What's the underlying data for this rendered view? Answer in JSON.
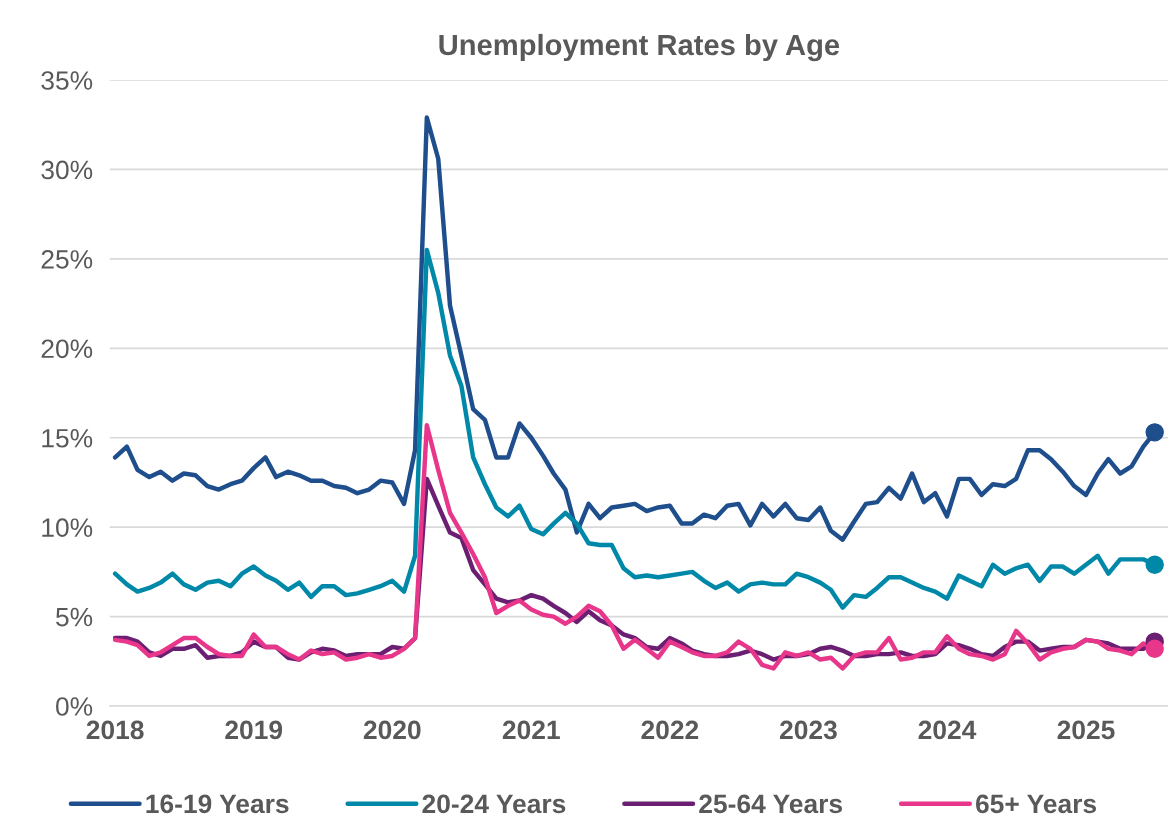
{
  "chart_data": {
    "type": "line",
    "title": "Unemployment Rates by Age",
    "x": [
      "2018-01",
      "2018-02",
      "2018-03",
      "2018-04",
      "2018-05",
      "2018-06",
      "2018-07",
      "2018-08",
      "2018-09",
      "2018-10",
      "2018-11",
      "2018-12",
      "2019-01",
      "2019-02",
      "2019-03",
      "2019-04",
      "2019-05",
      "2019-06",
      "2019-07",
      "2019-08",
      "2019-09",
      "2019-10",
      "2019-11",
      "2019-12",
      "2020-01",
      "2020-02",
      "2020-03",
      "2020-04",
      "2020-05",
      "2020-06",
      "2020-07",
      "2020-08",
      "2020-09",
      "2020-10",
      "2020-11",
      "2020-12",
      "2021-01",
      "2021-02",
      "2021-03",
      "2021-04",
      "2021-05",
      "2021-06",
      "2021-07",
      "2021-08",
      "2021-09",
      "2021-10",
      "2021-11",
      "2021-12",
      "2022-01",
      "2022-02",
      "2022-03",
      "2022-04",
      "2022-05",
      "2022-06",
      "2022-07",
      "2022-08",
      "2022-09",
      "2022-10",
      "2022-11",
      "2022-12",
      "2023-01",
      "2023-02",
      "2023-03",
      "2023-04",
      "2023-05",
      "2023-06",
      "2023-07",
      "2023-08",
      "2023-09",
      "2023-10",
      "2023-11",
      "2023-12",
      "2024-01",
      "2024-02",
      "2024-03",
      "2024-04",
      "2024-05",
      "2024-06",
      "2024-07",
      "2024-08",
      "2024-09",
      "2024-10",
      "2024-11",
      "2024-12",
      "2025-01",
      "2025-02",
      "2025-03",
      "2025-04",
      "2025-05",
      "2025-06",
      "2025-07"
    ],
    "series": [
      {
        "name": "16-19 Years",
        "color": "#1f4e8c",
        "values": [
          13.9,
          14.5,
          13.2,
          12.8,
          13.1,
          12.6,
          13.0,
          12.9,
          12.3,
          12.1,
          12.4,
          12.6,
          13.3,
          13.9,
          12.8,
          13.1,
          12.9,
          12.6,
          12.6,
          12.3,
          12.2,
          11.9,
          12.1,
          12.6,
          12.5,
          11.3,
          14.3,
          32.9,
          30.6,
          22.4,
          19.6,
          16.6,
          16.0,
          13.9,
          13.9,
          15.8,
          15.0,
          14.0,
          13.0,
          12.1,
          9.7,
          11.3,
          10.5,
          11.1,
          11.2,
          11.3,
          10.9,
          11.1,
          11.2,
          10.2,
          10.2,
          10.7,
          10.5,
          11.2,
          11.3,
          10.1,
          11.3,
          10.6,
          11.3,
          10.5,
          10.4,
          11.1,
          9.8,
          9.3,
          10.3,
          11.3,
          11.4,
          12.2,
          11.6,
          13.0,
          11.4,
          11.9,
          10.6,
          12.7,
          12.7,
          11.8,
          12.4,
          12.3,
          12.7,
          14.3,
          14.3,
          13.8,
          13.1,
          12.3,
          11.8,
          13.0,
          13.8,
          13.0,
          13.4,
          14.5,
          15.3
        ]
      },
      {
        "name": "20-24 Years",
        "color": "#0088a8",
        "values": [
          7.4,
          6.8,
          6.4,
          6.6,
          6.9,
          7.4,
          6.8,
          6.5,
          6.9,
          7.0,
          6.7,
          7.4,
          7.8,
          7.3,
          7.0,
          6.5,
          6.9,
          6.1,
          6.7,
          6.7,
          6.2,
          6.3,
          6.5,
          6.7,
          7.0,
          6.4,
          8.4,
          25.5,
          23.1,
          19.6,
          17.9,
          13.9,
          12.4,
          11.1,
          10.6,
          11.2,
          9.9,
          9.6,
          10.2,
          10.8,
          10.2,
          9.1,
          9.0,
          9.0,
          7.7,
          7.2,
          7.3,
          7.2,
          7.3,
          7.4,
          7.5,
          7.0,
          6.6,
          6.9,
          6.4,
          6.8,
          6.9,
          6.8,
          6.8,
          7.4,
          7.2,
          6.9,
          6.5,
          5.5,
          6.2,
          6.1,
          6.6,
          7.2,
          7.2,
          6.9,
          6.6,
          6.4,
          6.0,
          7.3,
          7.0,
          6.7,
          7.9,
          7.4,
          7.7,
          7.9,
          7.0,
          7.8,
          7.8,
          7.4,
          7.9,
          8.4,
          7.4,
          8.2,
          8.2,
          8.2,
          7.9
        ]
      },
      {
        "name": "25-64 Years",
        "color": "#6a1f72",
        "values": [
          3.8,
          3.8,
          3.6,
          3.0,
          2.8,
          3.2,
          3.2,
          3.4,
          2.7,
          2.8,
          2.8,
          3.0,
          3.6,
          3.3,
          3.3,
          2.7,
          2.6,
          3.0,
          3.2,
          3.1,
          2.8,
          2.9,
          2.9,
          2.9,
          3.3,
          3.2,
          3.8,
          12.7,
          11.2,
          9.7,
          9.4,
          7.6,
          6.8,
          6.0,
          5.8,
          5.9,
          6.2,
          6.0,
          5.6,
          5.2,
          4.7,
          5.3,
          4.8,
          4.5,
          4.0,
          3.8,
          3.3,
          3.2,
          3.8,
          3.5,
          3.1,
          2.9,
          2.8,
          2.8,
          2.9,
          3.1,
          2.9,
          2.6,
          2.8,
          2.8,
          2.9,
          3.2,
          3.3,
          3.1,
          2.8,
          2.8,
          2.9,
          2.9,
          3.0,
          2.8,
          2.8,
          2.9,
          3.5,
          3.4,
          3.2,
          2.9,
          2.8,
          3.3,
          3.6,
          3.6,
          3.1,
          3.2,
          3.3,
          3.3,
          3.7,
          3.6,
          3.5,
          3.2,
          3.2,
          3.2,
          3.6
        ]
      },
      {
        "name": "65+ Years",
        "color": "#e8368a",
        "values": [
          3.7,
          3.6,
          3.4,
          2.8,
          3.0,
          3.4,
          3.8,
          3.8,
          3.3,
          2.9,
          2.8,
          2.8,
          4.0,
          3.3,
          3.3,
          2.9,
          2.6,
          3.1,
          2.9,
          3.0,
          2.6,
          2.7,
          2.9,
          2.7,
          2.8,
          3.2,
          3.8,
          15.7,
          13.2,
          10.8,
          9.7,
          8.5,
          7.2,
          5.2,
          5.6,
          5.9,
          5.4,
          5.1,
          5.0,
          4.6,
          5.0,
          5.6,
          5.3,
          4.5,
          3.2,
          3.7,
          3.2,
          2.7,
          3.6,
          3.3,
          3.0,
          2.8,
          2.8,
          3.0,
          3.6,
          3.2,
          2.3,
          2.1,
          3.0,
          2.8,
          3.0,
          2.6,
          2.7,
          2.1,
          2.8,
          3.0,
          3.0,
          3.8,
          2.6,
          2.7,
          3.0,
          3.0,
          3.9,
          3.2,
          2.9,
          2.8,
          2.6,
          2.9,
          4.2,
          3.5,
          2.6,
          3.0,
          3.2,
          3.3,
          3.7,
          3.6,
          3.2,
          3.1,
          2.9,
          3.5,
          3.2
        ]
      },
      {
        "type": "scatter",
        "marker": "circle",
        "x": [
          "2025-07"
        ],
        "color": "#1f4e8c",
        "values": [
          15.3
        ]
      },
      {
        "type": "scatter",
        "marker": "circle",
        "x": [
          "2025-07"
        ],
        "color": "#0088a8",
        "values": [
          7.9
        ]
      },
      {
        "type": "scatter",
        "marker": "circle",
        "x": [
          "2025-07"
        ],
        "color": "#6a1f72",
        "values": [
          3.6
        ]
      },
      {
        "type": "scatter",
        "marker": "circle",
        "x": [
          "2025-07"
        ],
        "color": "#e8368a",
        "values": [
          3.2
        ]
      }
    ],
    "xlim": [
      "2017-12-18",
      "2025-08-05"
    ],
    "xticks": [
      {
        "value": "2018-01",
        "label": "2018"
      },
      {
        "value": "2019-01",
        "label": "2019"
      },
      {
        "value": "2020-01",
        "label": "2020"
      },
      {
        "value": "2021-01",
        "label": "2021"
      },
      {
        "value": "2022-01",
        "label": "2022"
      },
      {
        "value": "2023-01",
        "label": "2023"
      },
      {
        "value": "2024-01",
        "label": "2024"
      },
      {
        "value": "2025-01",
        "label": "2025"
      }
    ],
    "ylim": [
      0,
      35
    ],
    "yticks": [
      {
        "value": 0,
        "label": "0%"
      },
      {
        "value": 5,
        "label": "5%"
      },
      {
        "value": 10,
        "label": "10%"
      },
      {
        "value": 15,
        "label": "15%"
      },
      {
        "value": 20,
        "label": "20%"
      },
      {
        "value": 25,
        "label": "25%"
      },
      {
        "value": 30,
        "label": "30%"
      },
      {
        "value": 35,
        "label": "35%"
      }
    ],
    "grid": "y",
    "legend": "bottom",
    "marker": "none",
    "line_style": "solid"
  }
}
